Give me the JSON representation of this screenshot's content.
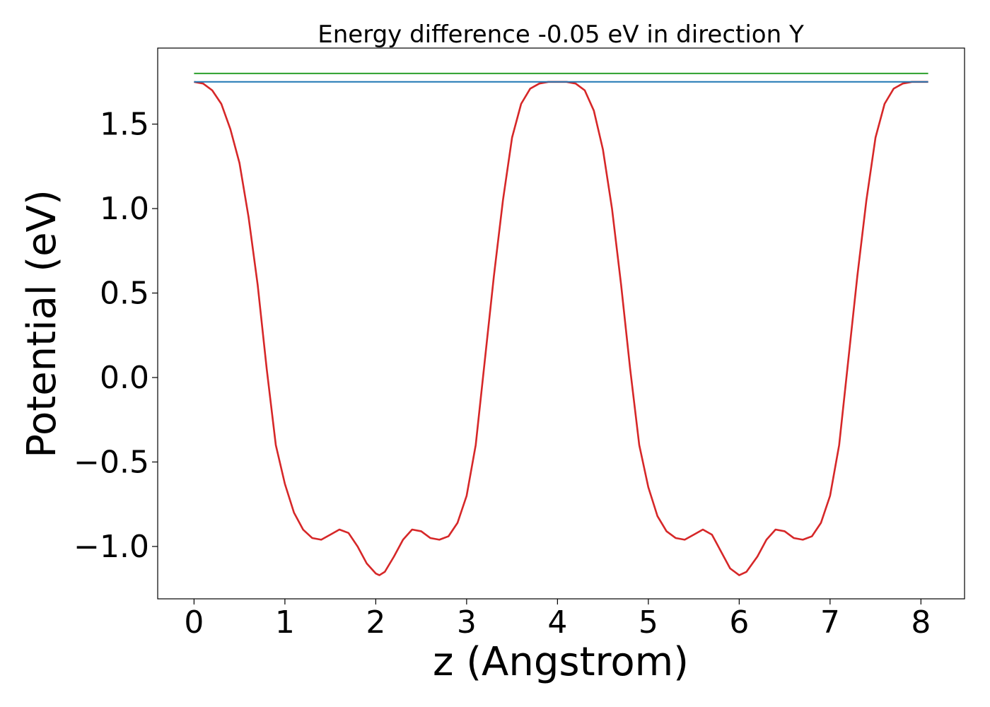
{
  "chart_data": {
    "type": "line",
    "title": "Energy difference -0.05 eV in direction Y",
    "xlabel": "z (Angstrom)",
    "ylabel": "Potential (eV)",
    "xlim": [
      -0.4,
      8.48
    ],
    "ylim": [
      -1.31,
      1.95
    ],
    "x_ticks": [
      0,
      1,
      2,
      3,
      4,
      5,
      6,
      7,
      8
    ],
    "x_tick_labels": [
      "0",
      "1",
      "2",
      "3",
      "4",
      "5",
      "6",
      "7",
      "8"
    ],
    "y_ticks": [
      -1.0,
      -0.5,
      0.0,
      0.5,
      1.0,
      1.5
    ],
    "y_tick_labels": [
      "−1.0",
      "−0.5",
      "0.0",
      "0.5",
      "1.0",
      "1.5"
    ],
    "grid": false,
    "series": [
      {
        "color": "#d62728",
        "x": [
          0,
          0.1,
          0.2,
          0.3,
          0.4,
          0.5,
          0.6,
          0.7,
          0.8,
          0.9,
          1.0,
          1.1,
          1.2,
          1.3,
          1.4,
          1.5,
          1.6,
          1.7,
          1.8,
          1.9,
          2.0,
          2.04,
          2.1,
          2.2,
          2.3,
          2.4,
          2.5,
          2.6,
          2.7,
          2.8,
          2.9,
          3.0,
          3.1,
          3.2,
          3.3,
          3.4,
          3.5,
          3.6,
          3.7,
          3.8,
          3.9,
          4.0,
          4.05,
          4.1,
          4.2,
          4.3,
          4.4,
          4.5,
          4.6,
          4.7,
          4.8,
          4.9,
          5.0,
          5.1,
          5.2,
          5.3,
          5.4,
          5.5,
          5.6,
          5.7,
          5.8,
          5.9,
          6.0,
          6.08,
          6.2,
          6.3,
          6.4,
          6.5,
          6.6,
          6.7,
          6.8,
          6.9,
          7.0,
          7.1,
          7.2,
          7.3,
          7.4,
          7.5,
          7.6,
          7.7,
          7.8,
          7.9,
          8.0,
          8.08
        ],
        "y": [
          1.75,
          1.74,
          1.7,
          1.62,
          1.47,
          1.27,
          0.95,
          0.55,
          0.05,
          -0.4,
          -0.63,
          -0.8,
          -0.9,
          -0.95,
          -0.96,
          -0.93,
          -0.9,
          -0.92,
          -1.0,
          -1.1,
          -1.16,
          -1.17,
          -1.15,
          -1.06,
          -0.96,
          -0.9,
          -0.91,
          -0.95,
          -0.96,
          -0.94,
          -0.86,
          -0.7,
          -0.4,
          0.1,
          0.6,
          1.05,
          1.42,
          1.62,
          1.71,
          1.74,
          1.75,
          1.75,
          1.75,
          1.75,
          1.74,
          1.7,
          1.58,
          1.35,
          1.0,
          0.55,
          0.05,
          -0.4,
          -0.65,
          -0.82,
          -0.91,
          -0.95,
          -0.96,
          -0.93,
          -0.9,
          -0.93,
          -1.03,
          -1.13,
          -1.17,
          -1.15,
          -1.06,
          -0.96,
          -0.9,
          -0.91,
          -0.95,
          -0.96,
          -0.94,
          -0.86,
          -0.7,
          -0.4,
          0.1,
          0.6,
          1.05,
          1.42,
          1.62,
          1.71,
          1.74,
          1.75,
          1.75,
          1.75
        ]
      },
      {
        "color": "#1f77b4",
        "x": [
          0,
          8.08
        ],
        "y": [
          1.75,
          1.75
        ]
      },
      {
        "color": "#2ca02c",
        "x": [
          0,
          8.08
        ],
        "y": [
          1.8,
          1.8
        ]
      }
    ]
  }
}
